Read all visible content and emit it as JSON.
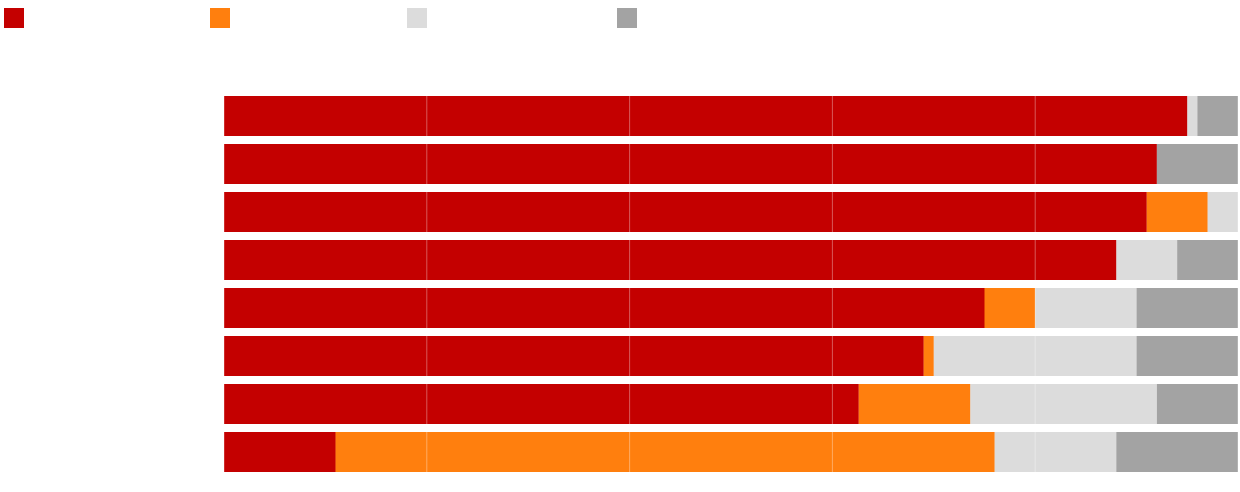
{
  "chart_data": {
    "type": "bar",
    "orientation": "horizontal",
    "stacked": true,
    "normalized": true,
    "xlim": [
      0,
      100
    ],
    "grid": true,
    "legend_position": "top-left",
    "title": "",
    "xlabel": "",
    "ylabel": "",
    "categories": [
      "",
      "",
      "",
      "",
      "",
      "",
      "",
      ""
    ],
    "series": [
      {
        "name": "",
        "color": "#c40000",
        "values": [
          95,
          92,
          91,
          88,
          75,
          69,
          62.6,
          11
        ]
      },
      {
        "name": "",
        "color": "#ff7f0e",
        "values": [
          0,
          0,
          6,
          0,
          5,
          1,
          11,
          65
        ]
      },
      {
        "name": "",
        "color": "#dcdcdc",
        "values": [
          1,
          0,
          3,
          6,
          10,
          20,
          18.4,
          12
        ]
      },
      {
        "name": "",
        "color": "#a3a3a3",
        "values": [
          4,
          8,
          0,
          6,
          10,
          10,
          8,
          12
        ]
      }
    ]
  }
}
